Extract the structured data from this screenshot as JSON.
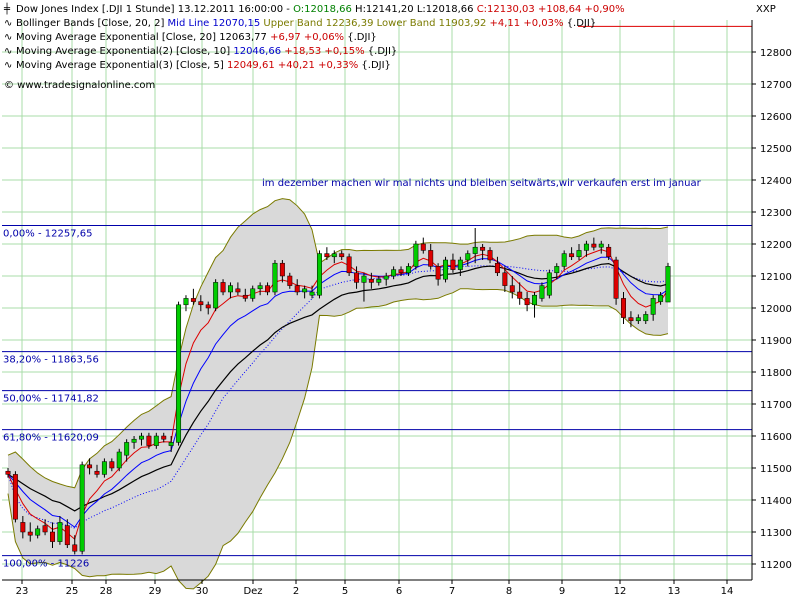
{
  "chart_data": {
    "type": "candlestick",
    "instrument_label": "XXP",
    "header": {
      "line1": {
        "title": "Dow Jones Index [.DJI  1 Stunde] 13.12.2011 16:00:00 - ",
        "open": "O:12018,66",
        "high": "H:12141,20",
        "low": "L:12018,66",
        "close": "C:12130,03",
        "change": "+108,64 +0,90%"
      },
      "line2": {
        "name": "Bollinger Bands [Close, 20, 2]",
        "mid": "Mid Line 12070,15",
        "upper": "Upper Band 12236,39",
        "lower": "Lower Band 11903,92",
        "change": "+4,11 +0,03%",
        "sym": "{.DJI}"
      },
      "line3": {
        "name": "Moving Average Exponential [Close, 20]",
        "value": "12063,77",
        "change": "+6,97 +0,06%",
        "sym": "{.DJI}"
      },
      "line4": {
        "name": "Moving Average Exponential(2) [Close, 10]",
        "value": "12046,66",
        "change": "+18,53 +0,15%",
        "sym": "{.DJI}"
      },
      "line5": {
        "name": "Moving Average Exponential(3) [Close, 5]",
        "value": "12049,61",
        "change": "+40,21 +0,33%",
        "sym": "{.DJI}"
      },
      "copyright": "© www.tradesignalonline.com"
    },
    "annotation": "im dezember machen wir mal nichts und bleiben seitwärts,wir verkaufen erst im januar",
    "ylim": [
      11150,
      12900
    ],
    "yticks": [
      11200,
      11300,
      11400,
      11500,
      11600,
      11700,
      11800,
      11900,
      12000,
      12100,
      12200,
      12300,
      12400,
      12500,
      12600,
      12700,
      12800
    ],
    "ytick_labels": [
      "11200",
      "11300",
      "11400",
      "11500",
      "11600",
      "11700",
      "11800",
      "11900",
      "12000",
      "12100",
      "12200",
      "12300",
      "12400",
      "12500",
      "12600",
      "12700",
      "12800"
    ],
    "x_labels": [
      "23",
      "25",
      "28",
      "29",
      "30",
      "Dez",
      "2",
      "5",
      "6",
      "7",
      "8",
      "9",
      "12",
      "13",
      "14"
    ],
    "fib_levels": [
      {
        "label": "0,00% - 12257,65",
        "value": 12257.65
      },
      {
        "label": "38,20% - 11863,56",
        "value": 11863.56
      },
      {
        "label": "50,00% - 11741,82",
        "value": 11741.82
      },
      {
        "label": "61,80% - 11620,09",
        "value": 11620.09
      },
      {
        "label": "100,00% - 11226",
        "value": 11226
      }
    ],
    "candles": [
      {
        "o": 11490,
        "h": 11500,
        "l": 11470,
        "c": 11480
      },
      {
        "o": 11480,
        "h": 11490,
        "l": 11330,
        "c": 11340
      },
      {
        "o": 11330,
        "h": 11350,
        "l": 11280,
        "c": 11300
      },
      {
        "o": 11300,
        "h": 11330,
        "l": 11270,
        "c": 11290
      },
      {
        "o": 11290,
        "h": 11320,
        "l": 11280,
        "c": 11310
      },
      {
        "o": 11320,
        "h": 11340,
        "l": 11290,
        "c": 11300
      },
      {
        "o": 11300,
        "h": 11330,
        "l": 11250,
        "c": 11270
      },
      {
        "o": 11270,
        "h": 11350,
        "l": 11260,
        "c": 11330
      },
      {
        "o": 11320,
        "h": 11340,
        "l": 11250,
        "c": 11260
      },
      {
        "o": 11260,
        "h": 11290,
        "l": 11230,
        "c": 11240
      },
      {
        "o": 11240,
        "h": 11520,
        "l": 11230,
        "c": 11510
      },
      {
        "o": 11510,
        "h": 11530,
        "l": 11480,
        "c": 11500
      },
      {
        "o": 11490,
        "h": 11510,
        "l": 11470,
        "c": 11480
      },
      {
        "o": 11480,
        "h": 11530,
        "l": 11470,
        "c": 11520
      },
      {
        "o": 11520,
        "h": 11530,
        "l": 11490,
        "c": 11500
      },
      {
        "o": 11500,
        "h": 11560,
        "l": 11490,
        "c": 11550
      },
      {
        "o": 11540,
        "h": 11590,
        "l": 11520,
        "c": 11580
      },
      {
        "o": 11580,
        "h": 11600,
        "l": 11560,
        "c": 11590
      },
      {
        "o": 11590,
        "h": 11610,
        "l": 11570,
        "c": 11600
      },
      {
        "o": 11600,
        "h": 11610,
        "l": 11560,
        "c": 11570
      },
      {
        "o": 11570,
        "h": 11610,
        "l": 11560,
        "c": 11600
      },
      {
        "o": 11600,
        "h": 11610,
        "l": 11580,
        "c": 11590
      },
      {
        "o": 11570,
        "h": 11600,
        "l": 11550,
        "c": 11580
      },
      {
        "o": 11580,
        "h": 12020,
        "l": 11570,
        "c": 12010
      },
      {
        "o": 12010,
        "h": 12040,
        "l": 11990,
        "c": 12030
      },
      {
        "o": 12030,
        "h": 12060,
        "l": 12010,
        "c": 12020
      },
      {
        "o": 12020,
        "h": 12040,
        "l": 11990,
        "c": 12010
      },
      {
        "o": 12010,
        "h": 12020,
        "l": 11980,
        "c": 12000
      },
      {
        "o": 12000,
        "h": 12090,
        "l": 11990,
        "c": 12080
      },
      {
        "o": 12080,
        "h": 12090,
        "l": 12040,
        "c": 12050
      },
      {
        "o": 12050,
        "h": 12080,
        "l": 12030,
        "c": 12070
      },
      {
        "o": 12060,
        "h": 12080,
        "l": 12040,
        "c": 12050
      },
      {
        "o": 12040,
        "h": 12060,
        "l": 12020,
        "c": 12030
      },
      {
        "o": 12030,
        "h": 12070,
        "l": 12020,
        "c": 12060
      },
      {
        "o": 12060,
        "h": 12080,
        "l": 12040,
        "c": 12070
      },
      {
        "o": 12070,
        "h": 12080,
        "l": 12040,
        "c": 12050
      },
      {
        "o": 12050,
        "h": 12150,
        "l": 12040,
        "c": 12140
      },
      {
        "o": 12140,
        "h": 12150,
        "l": 12080,
        "c": 12100
      },
      {
        "o": 12100,
        "h": 12110,
        "l": 12060,
        "c": 12070
      },
      {
        "o": 12070,
        "h": 12090,
        "l": 12040,
        "c": 12050
      },
      {
        "o": 12050,
        "h": 12070,
        "l": 12030,
        "c": 12060
      },
      {
        "o": 12040,
        "h": 12070,
        "l": 12030,
        "c": 12050
      },
      {
        "o": 12040,
        "h": 12180,
        "l": 12030,
        "c": 12170
      },
      {
        "o": 12170,
        "h": 12190,
        "l": 12150,
        "c": 12160
      },
      {
        "o": 12160,
        "h": 12180,
        "l": 12140,
        "c": 12170
      },
      {
        "o": 12170,
        "h": 12180,
        "l": 12150,
        "c": 12160
      },
      {
        "o": 12160,
        "h": 12170,
        "l": 12100,
        "c": 12110
      },
      {
        "o": 12110,
        "h": 12130,
        "l": 12060,
        "c": 12080
      },
      {
        "o": 12080,
        "h": 12110,
        "l": 12020,
        "c": 12100
      },
      {
        "o": 12090,
        "h": 12110,
        "l": 12060,
        "c": 12080
      },
      {
        "o": 12080,
        "h": 12100,
        "l": 12070,
        "c": 12090
      },
      {
        "o": 12090,
        "h": 12110,
        "l": 12070,
        "c": 12100
      },
      {
        "o": 12100,
        "h": 12130,
        "l": 12090,
        "c": 12120
      },
      {
        "o": 12120,
        "h": 12130,
        "l": 12100,
        "c": 12110
      },
      {
        "o": 12110,
        "h": 12140,
        "l": 12100,
        "c": 12130
      },
      {
        "o": 12130,
        "h": 12210,
        "l": 12120,
        "c": 12200
      },
      {
        "o": 12200,
        "h": 12220,
        "l": 12170,
        "c": 12180
      },
      {
        "o": 12180,
        "h": 12200,
        "l": 12120,
        "c": 12130
      },
      {
        "o": 12130,
        "h": 12140,
        "l": 12070,
        "c": 12090
      },
      {
        "o": 12090,
        "h": 12160,
        "l": 12080,
        "c": 12150
      },
      {
        "o": 12150,
        "h": 12170,
        "l": 12110,
        "c": 12120
      },
      {
        "o": 12120,
        "h": 12160,
        "l": 12100,
        "c": 12150
      },
      {
        "o": 12150,
        "h": 12180,
        "l": 12130,
        "c": 12170
      },
      {
        "o": 12170,
        "h": 12250,
        "l": 12140,
        "c": 12190
      },
      {
        "o": 12190,
        "h": 12200,
        "l": 12150,
        "c": 12180
      },
      {
        "o": 12180,
        "h": 12190,
        "l": 12140,
        "c": 12150
      },
      {
        "o": 12140,
        "h": 12160,
        "l": 12100,
        "c": 12110
      },
      {
        "o": 12110,
        "h": 12130,
        "l": 12050,
        "c": 12070
      },
      {
        "o": 12070,
        "h": 12100,
        "l": 12030,
        "c": 12050
      },
      {
        "o": 12050,
        "h": 12080,
        "l": 12010,
        "c": 12030
      },
      {
        "o": 12030,
        "h": 12050,
        "l": 11990,
        "c": 12010
      },
      {
        "o": 12010,
        "h": 12050,
        "l": 11970,
        "c": 12040
      },
      {
        "o": 12030,
        "h": 12080,
        "l": 12020,
        "c": 12070
      },
      {
        "o": 12040,
        "h": 12120,
        "l": 12030,
        "c": 12110
      },
      {
        "o": 12110,
        "h": 12140,
        "l": 12090,
        "c": 12130
      },
      {
        "o": 12130,
        "h": 12180,
        "l": 12120,
        "c": 12170
      },
      {
        "o": 12170,
        "h": 12190,
        "l": 12150,
        "c": 12160
      },
      {
        "o": 12160,
        "h": 12200,
        "l": 12150,
        "c": 12180
      },
      {
        "o": 12180,
        "h": 12210,
        "l": 12160,
        "c": 12200
      },
      {
        "o": 12200,
        "h": 12220,
        "l": 12180,
        "c": 12190
      },
      {
        "o": 12190,
        "h": 12210,
        "l": 12170,
        "c": 12200
      },
      {
        "o": 12190,
        "h": 12200,
        "l": 12150,
        "c": 12160
      },
      {
        "o": 12150,
        "h": 12160,
        "l": 12010,
        "c": 12030
      },
      {
        "o": 12030,
        "h": 12050,
        "l": 11950,
        "c": 11970
      },
      {
        "o": 11970,
        "h": 11990,
        "l": 11940,
        "c": 11960
      },
      {
        "o": 11960,
        "h": 11980,
        "l": 11950,
        "c": 11970
      },
      {
        "o": 11960,
        "h": 11990,
        "l": 11950,
        "c": 11980
      },
      {
        "o": 11980,
        "h": 12040,
        "l": 11960,
        "c": 12030
      },
      {
        "o": 12020,
        "h": 12050,
        "l": 12010,
        "c": 12040
      },
      {
        "o": 12018.66,
        "h": 12141.2,
        "l": 12018.66,
        "c": 12130.03
      }
    ],
    "colors": {
      "up": "#00cc00",
      "down": "#dd0000",
      "wick": "#000000",
      "band_fill": "#d9d9d9",
      "band_line": "#7a7a00",
      "ema20": "#000000",
      "ema10": "#0000ff",
      "ema5": "#dd0000",
      "mid": "#0000ff",
      "fib": "#0000aa",
      "grid": "#a8dca8",
      "annotation": "#0000aa",
      "upper_ref": "#dd0000"
    },
    "grid": true
  }
}
